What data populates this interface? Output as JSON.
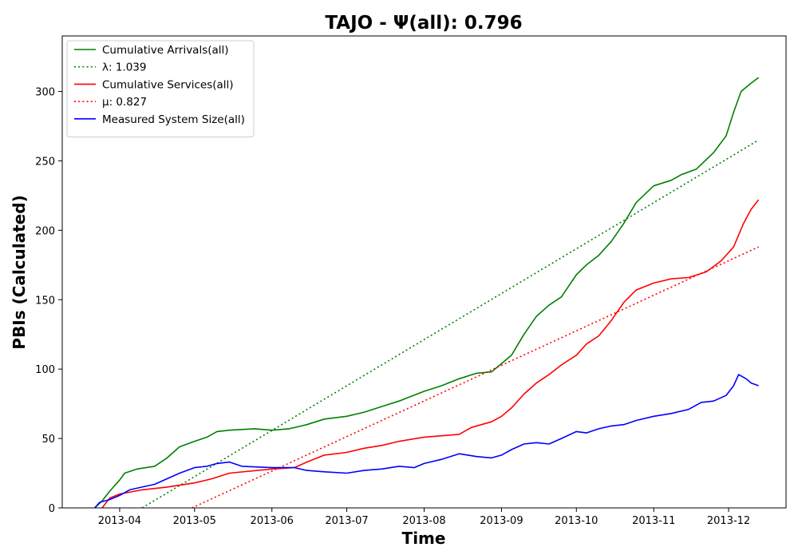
{
  "chart_data": {
    "type": "line",
    "title": "TAJO -  Ψ(all): 0.796",
    "xlabel": "Time",
    "ylabel": "PBIs (Calculated)",
    "xlim": [
      "2013-03-09",
      "2013-12-24"
    ],
    "ylim": [
      0,
      340
    ],
    "x_ticks": [
      "2013-04-01",
      "2013-05-01",
      "2013-06-01",
      "2013-07-01",
      "2013-08-01",
      "2013-09-01",
      "2013-10-01",
      "2013-11-01",
      "2013-12-01"
    ],
    "x_tick_labels": [
      "2013-04",
      "2013-05",
      "2013-06",
      "2013-07",
      "2013-08",
      "2013-09",
      "2013-10",
      "2013-11",
      "2013-12"
    ],
    "y_ticks": [
      0,
      50,
      100,
      150,
      200,
      250,
      300
    ],
    "grid": false,
    "legend_position": "upper-left",
    "series": [
      {
        "name": "Cumulative Arrivals(all)",
        "color": "#008000",
        "style": "solid",
        "points": [
          [
            "2013-03-22",
            0
          ],
          [
            "2013-03-25",
            5
          ],
          [
            "2013-03-28",
            12
          ],
          [
            "2013-04-01",
            20
          ],
          [
            "2013-04-03",
            25
          ],
          [
            "2013-04-08",
            28
          ],
          [
            "2013-04-15",
            30
          ],
          [
            "2013-04-20",
            36
          ],
          [
            "2013-04-25",
            44
          ],
          [
            "2013-05-01",
            48
          ],
          [
            "2013-05-06",
            51
          ],
          [
            "2013-05-10",
            55
          ],
          [
            "2013-05-15",
            56
          ],
          [
            "2013-05-25",
            57
          ],
          [
            "2013-06-01",
            56
          ],
          [
            "2013-06-08",
            57
          ],
          [
            "2013-06-15",
            60
          ],
          [
            "2013-06-22",
            64
          ],
          [
            "2013-07-01",
            66
          ],
          [
            "2013-07-08",
            69
          ],
          [
            "2013-07-15",
            73
          ],
          [
            "2013-07-22",
            77
          ],
          [
            "2013-08-01",
            84
          ],
          [
            "2013-08-08",
            88
          ],
          [
            "2013-08-15",
            93
          ],
          [
            "2013-08-22",
            97
          ],
          [
            "2013-08-28",
            98
          ],
          [
            "2013-09-01",
            104
          ],
          [
            "2013-09-05",
            110
          ],
          [
            "2013-09-10",
            125
          ],
          [
            "2013-09-15",
            138
          ],
          [
            "2013-09-20",
            146
          ],
          [
            "2013-09-25",
            152
          ],
          [
            "2013-10-01",
            168
          ],
          [
            "2013-10-05",
            175
          ],
          [
            "2013-10-10",
            182
          ],
          [
            "2013-10-15",
            192
          ],
          [
            "2013-10-20",
            205
          ],
          [
            "2013-10-25",
            220
          ],
          [
            "2013-11-01",
            232
          ],
          [
            "2013-11-08",
            236
          ],
          [
            "2013-11-12",
            240
          ],
          [
            "2013-11-18",
            244
          ],
          [
            "2013-11-25",
            256
          ],
          [
            "2013-11-30",
            268
          ],
          [
            "2013-12-03",
            285
          ],
          [
            "2013-12-06",
            300
          ],
          [
            "2013-12-10",
            306
          ],
          [
            "2013-12-13",
            310
          ]
        ]
      },
      {
        "name": "λ: 1.039",
        "color": "#008000",
        "style": "dotted",
        "points": [
          [
            "2013-04-10",
            0
          ],
          [
            "2013-12-13",
            265
          ]
        ]
      },
      {
        "name": "Cumulative Services(all)",
        "color": "#ff0000",
        "style": "solid",
        "points": [
          [
            "2013-03-25",
            0
          ],
          [
            "2013-03-28",
            7
          ],
          [
            "2013-04-01",
            10
          ],
          [
            "2013-04-10",
            13
          ],
          [
            "2013-04-20",
            15
          ],
          [
            "2013-05-01",
            18
          ],
          [
            "2013-05-08",
            21
          ],
          [
            "2013-05-15",
            25
          ],
          [
            "2013-06-01",
            28
          ],
          [
            "2013-06-10",
            29
          ],
          [
            "2013-06-15",
            33
          ],
          [
            "2013-06-22",
            38
          ],
          [
            "2013-07-01",
            40
          ],
          [
            "2013-07-08",
            43
          ],
          [
            "2013-07-15",
            45
          ],
          [
            "2013-07-22",
            48
          ],
          [
            "2013-08-01",
            51
          ],
          [
            "2013-08-15",
            53
          ],
          [
            "2013-08-20",
            58
          ],
          [
            "2013-08-28",
            62
          ],
          [
            "2013-09-01",
            66
          ],
          [
            "2013-09-05",
            72
          ],
          [
            "2013-09-10",
            82
          ],
          [
            "2013-09-15",
            90
          ],
          [
            "2013-09-20",
            96
          ],
          [
            "2013-09-25",
            103
          ],
          [
            "2013-10-01",
            110
          ],
          [
            "2013-10-05",
            118
          ],
          [
            "2013-10-10",
            124
          ],
          [
            "2013-10-15",
            135
          ],
          [
            "2013-10-20",
            148
          ],
          [
            "2013-10-25",
            157
          ],
          [
            "2013-11-01",
            162
          ],
          [
            "2013-11-08",
            165
          ],
          [
            "2013-11-15",
            166
          ],
          [
            "2013-11-22",
            170
          ],
          [
            "2013-11-28",
            178
          ],
          [
            "2013-12-03",
            188
          ],
          [
            "2013-12-07",
            205
          ],
          [
            "2013-12-10",
            215
          ],
          [
            "2013-12-13",
            222
          ]
        ]
      },
      {
        "name": "μ: 0.827",
        "color": "#ff0000",
        "style": "dotted",
        "points": [
          [
            "2013-04-30",
            0
          ],
          [
            "2013-12-13",
            188
          ]
        ]
      },
      {
        "name": "Measured System Size(all)",
        "color": "#0000ff",
        "style": "solid",
        "points": [
          [
            "2013-03-22",
            0
          ],
          [
            "2013-03-24",
            4
          ],
          [
            "2013-03-28",
            6
          ],
          [
            "2013-04-01",
            9
          ],
          [
            "2013-04-05",
            13
          ],
          [
            "2013-04-10",
            15
          ],
          [
            "2013-04-15",
            17
          ],
          [
            "2013-04-20",
            21
          ],
          [
            "2013-04-25",
            25
          ],
          [
            "2013-05-01",
            29
          ],
          [
            "2013-05-06",
            30
          ],
          [
            "2013-05-10",
            32
          ],
          [
            "2013-05-15",
            33
          ],
          [
            "2013-05-20",
            30
          ],
          [
            "2013-06-01",
            29
          ],
          [
            "2013-06-10",
            29
          ],
          [
            "2013-06-15",
            27
          ],
          [
            "2013-06-22",
            26
          ],
          [
            "2013-07-01",
            25
          ],
          [
            "2013-07-08",
            27
          ],
          [
            "2013-07-15",
            28
          ],
          [
            "2013-07-22",
            30
          ],
          [
            "2013-07-28",
            29
          ],
          [
            "2013-08-01",
            32
          ],
          [
            "2013-08-08",
            35
          ],
          [
            "2013-08-15",
            39
          ],
          [
            "2013-08-22",
            37
          ],
          [
            "2013-08-28",
            36
          ],
          [
            "2013-09-01",
            38
          ],
          [
            "2013-09-05",
            42
          ],
          [
            "2013-09-10",
            46
          ],
          [
            "2013-09-15",
            47
          ],
          [
            "2013-09-20",
            46
          ],
          [
            "2013-09-25",
            50
          ],
          [
            "2013-10-01",
            55
          ],
          [
            "2013-10-05",
            54
          ],
          [
            "2013-10-10",
            57
          ],
          [
            "2013-10-15",
            59
          ],
          [
            "2013-10-20",
            60
          ],
          [
            "2013-10-25",
            63
          ],
          [
            "2013-11-01",
            66
          ],
          [
            "2013-11-08",
            68
          ],
          [
            "2013-11-15",
            71
          ],
          [
            "2013-11-20",
            76
          ],
          [
            "2013-11-25",
            77
          ],
          [
            "2013-11-30",
            81
          ],
          [
            "2013-12-03",
            88
          ],
          [
            "2013-12-05",
            96
          ],
          [
            "2013-12-08",
            93
          ],
          [
            "2013-12-10",
            90
          ],
          [
            "2013-12-13",
            88
          ]
        ]
      }
    ]
  }
}
